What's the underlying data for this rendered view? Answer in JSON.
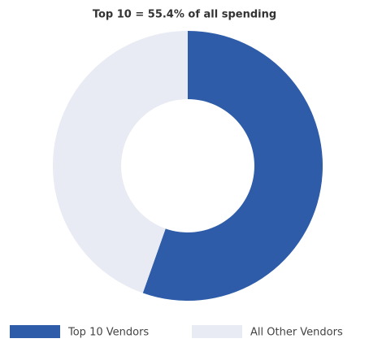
{
  "chart_data": {
    "type": "donut",
    "title": "Top 10 = 55.4% of all spending",
    "categories": [
      "Top 10 Vendors",
      "All Other Vendors"
    ],
    "values": [
      55.4,
      44.6
    ],
    "colors": [
      "#2e5ca8",
      "#e8ebf3"
    ]
  }
}
